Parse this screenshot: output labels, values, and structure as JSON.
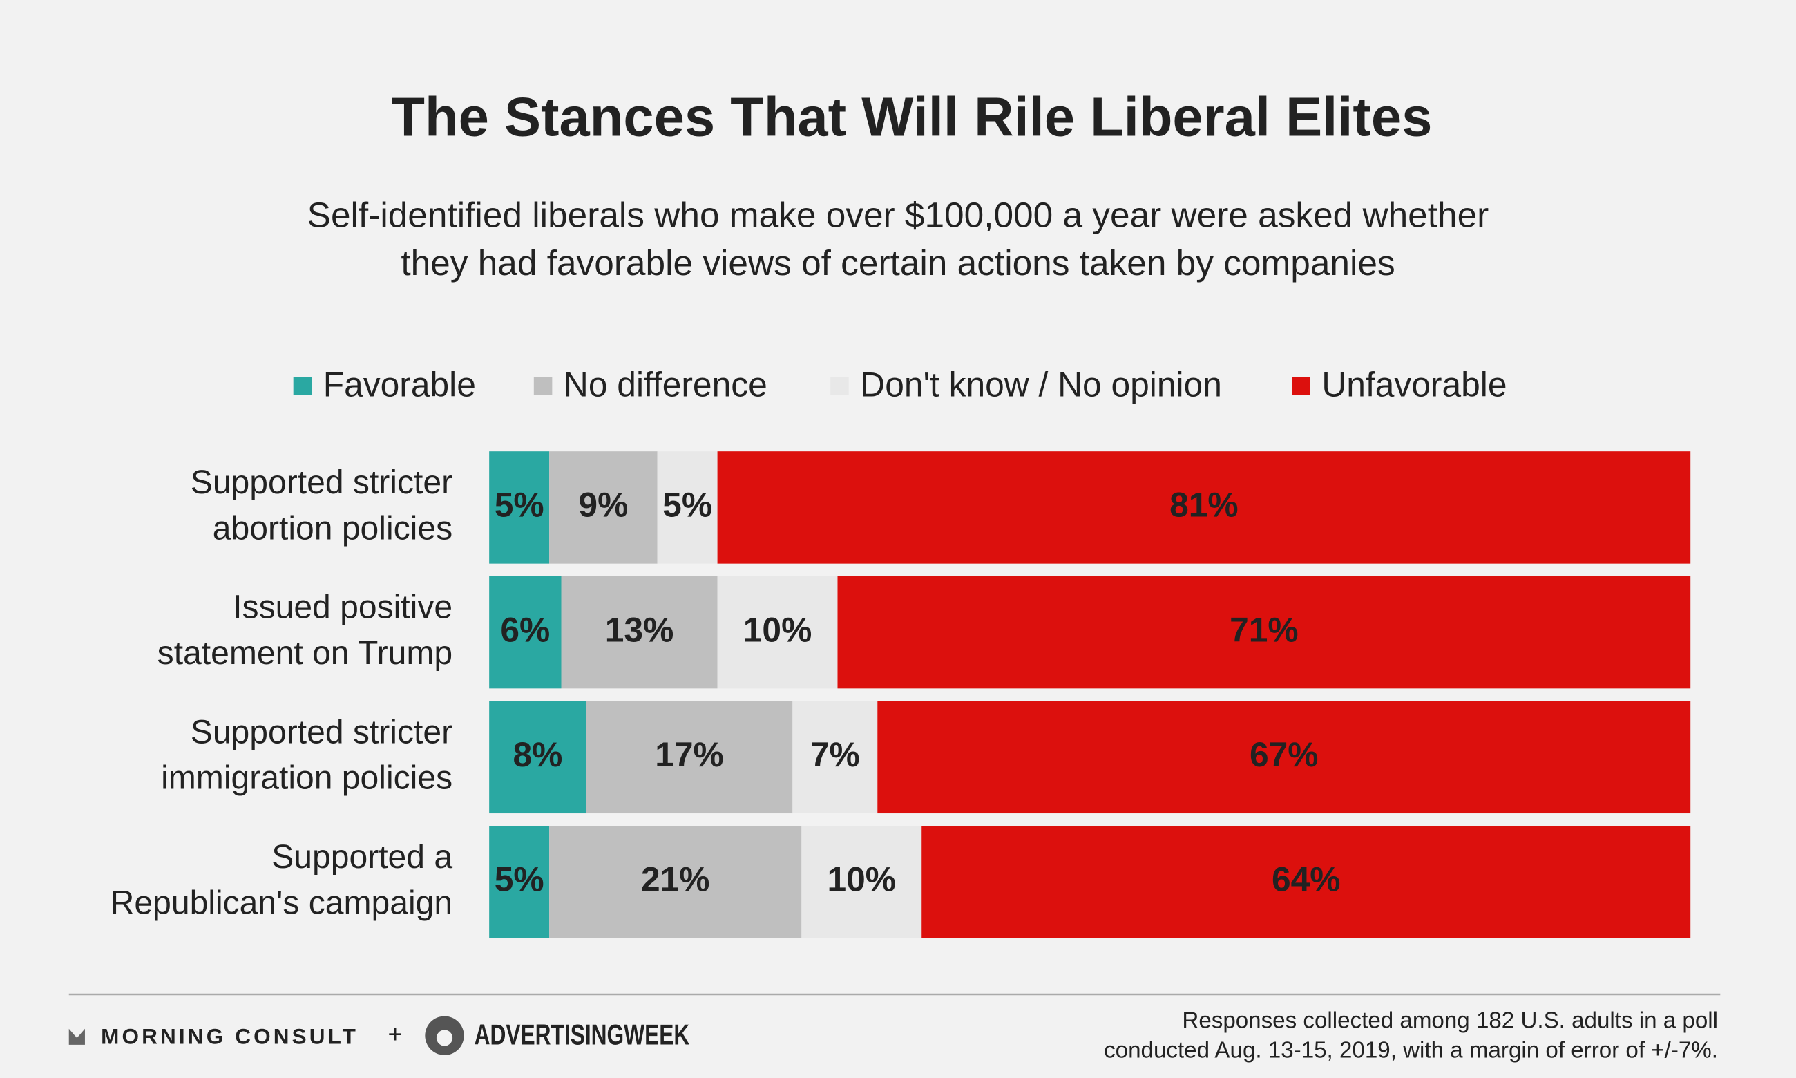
{
  "chart_data": {
    "type": "stacked-bar-horizontal",
    "title": "The Stances That Will Rile Liberal Elites",
    "subtitle": [
      "Self-identified liberals who make over $100,000 a year were asked whether",
      "they had favorable views of certain actions taken by companies"
    ],
    "categories": [
      [
        "Supported stricter",
        "abortion policies"
      ],
      [
        "Issued positive",
        "statement on Trump"
      ],
      [
        "Supported stricter",
        "immigration policies"
      ],
      [
        "Supported a",
        "Republican's campaign"
      ]
    ],
    "series": [
      {
        "name": "Favorable",
        "color": "#2aa8a2",
        "values": [
          5,
          6,
          8,
          5
        ],
        "value_labels": [
          "5%",
          "6%",
          "8%",
          "5%"
        ]
      },
      {
        "name": "No difference",
        "color": "#bfbfbf",
        "values": [
          9,
          13,
          17,
          21
        ],
        "value_labels": [
          "9%",
          "13%",
          "17%",
          "21%"
        ]
      },
      {
        "name": "Don't know / No opinion",
        "color": "#e8e8e8",
        "values": [
          5,
          10,
          7,
          10
        ],
        "value_labels": [
          "5%",
          "10%",
          "7%",
          "10%"
        ]
      },
      {
        "name": "Unfavorable",
        "color": "#dc100d",
        "values": [
          81,
          71,
          67,
          64
        ],
        "value_labels": [
          "81%",
          "71%",
          "67%",
          "64%"
        ]
      }
    ],
    "legend": "top",
    "footer": {
      "brand1": "MORNING CONSULT",
      "plus": "+",
      "brand2": "ADVERTISINGWEEK",
      "note": [
        "Responses collected among 182 U.S. adults in a poll",
        "conducted Aug. 13-15, 2019, with a margin of error of +/-7%."
      ]
    }
  }
}
